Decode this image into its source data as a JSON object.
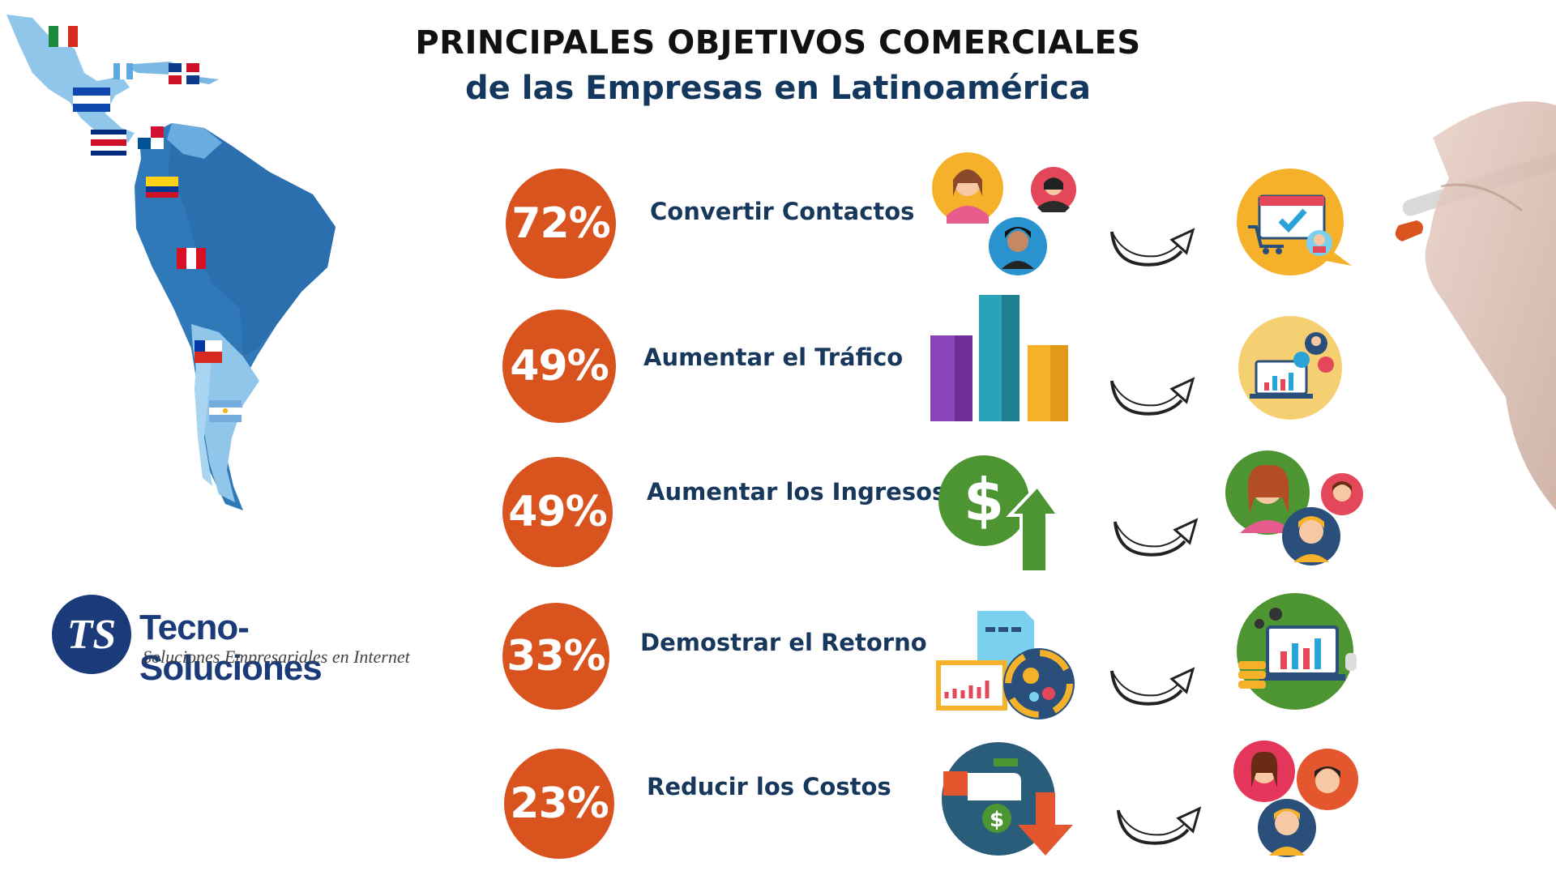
{
  "header": {
    "title": "PRINCIPALES OBJETIVOS COMERCIALES",
    "subtitle": "de las Empresas en Latinoamérica"
  },
  "goals": [
    {
      "percent": "72%",
      "label": "Convertir Contactos",
      "icon": "people-contacts-icon",
      "result_icon": "online-shop-icon"
    },
    {
      "percent": "49%",
      "label": "Aumentar el Tráfico",
      "icon": "bar-chart-icon",
      "result_icon": "traffic-analytics-icon"
    },
    {
      "percent": "49%",
      "label": "Aumentar los Ingresos",
      "icon": "dollar-up-icon",
      "result_icon": "customers-group-icon"
    },
    {
      "percent": "33%",
      "label": "Demostrar el Retorno",
      "icon": "report-gears-icon",
      "result_icon": "dashboard-icon"
    },
    {
      "percent": "23%",
      "label": "Reducir los Costos",
      "icon": "cost-down-icon",
      "result_icon": "team-faces-icon"
    }
  ],
  "logo": {
    "monogram": "TS",
    "name": "Tecno-Soluciones",
    "tagline": "Soluciones Empresariales en Internet"
  },
  "colors": {
    "accent": "#d9531e",
    "label": "#17375c",
    "map_dark": "#2f79b8",
    "map_light": "#8fc6ea"
  }
}
